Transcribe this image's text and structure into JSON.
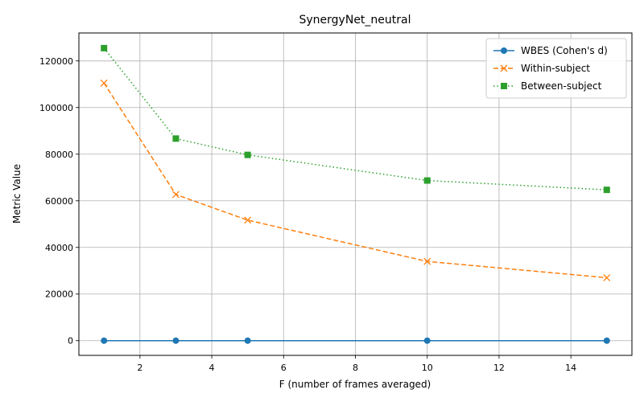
{
  "chart_data": {
    "type": "line",
    "title": "SynergyNet_neutral",
    "xlabel": "F (number of frames averaged)",
    "ylabel": "Metric Value",
    "x": [
      1,
      3,
      5,
      10,
      15
    ],
    "xlim": [
      0.3,
      15.7
    ],
    "ylim": [
      -6300,
      132000
    ],
    "xticks": [
      2,
      4,
      6,
      8,
      10,
      12,
      14
    ],
    "yticks": [
      0,
      20000,
      40000,
      60000,
      80000,
      100000,
      120000
    ],
    "grid": true,
    "legend_position": "top-right",
    "series": [
      {
        "name": "WBES (Cohen's d)",
        "values": [
          0,
          0,
          0,
          0,
          0
        ],
        "color": "#1f77b4",
        "marker": "circle",
        "linestyle": "solid"
      },
      {
        "name": "Within-subject",
        "values": [
          110500,
          62700,
          51700,
          34000,
          27000
        ],
        "color": "#ff7f0e",
        "marker": "x",
        "linestyle": "dashed"
      },
      {
        "name": "Between-subject",
        "values": [
          125500,
          86700,
          79700,
          68700,
          64700
        ],
        "color": "#2ca02c",
        "marker": "square",
        "linestyle": "dotted"
      }
    ]
  }
}
